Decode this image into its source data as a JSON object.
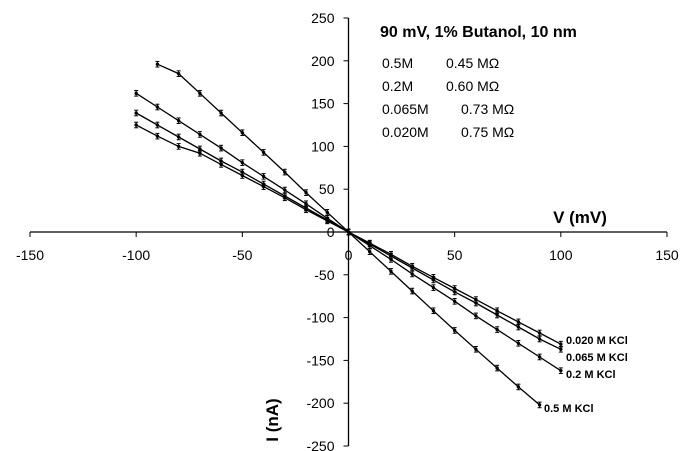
{
  "chart_data": {
    "type": "line",
    "title": "90 mV, 1%  Butanol, 10 nm",
    "xlabel": "V (mV)",
    "ylabel": "I (nA)",
    "xlim": [
      -150,
      150
    ],
    "ylim": [
      -250,
      250
    ],
    "xticks": [
      -150,
      -100,
      -50,
      0,
      50,
      100,
      150
    ],
    "yticks": [
      -250,
      -200,
      -150,
      -100,
      -50,
      0,
      50,
      100,
      150,
      200,
      250
    ],
    "xtick_labels": [
      "-150",
      "-100",
      "-50",
      "0",
      "50",
      "100",
      "150"
    ],
    "ytick_labels": [
      "-250",
      "-200",
      "-150",
      "-100",
      "-50",
      "0",
      "50",
      "100",
      "150",
      "200",
      "250"
    ],
    "legend_lines": [
      {
        "concentration": "0.5M",
        "resistance": "0.45 MΩ"
      },
      {
        "concentration": "0.2M",
        "resistance": "0.60 MΩ"
      },
      {
        "concentration": "0.065M",
        "resistance": "0.73 MΩ"
      },
      {
        "concentration": "0.020M",
        "resistance": "0.75 MΩ"
      }
    ],
    "series": [
      {
        "name": "0.5 M KCl",
        "x": [
          -90,
          -80,
          -70,
          -60,
          -50,
          -40,
          -30,
          -20,
          -10,
          0,
          10,
          20,
          30,
          40,
          50,
          60,
          70,
          80,
          90
        ],
        "y": [
          196,
          185,
          162,
          139,
          116,
          93,
          70,
          46,
          23,
          0,
          -23,
          -46,
          -69,
          -92,
          -115,
          -137,
          -159,
          -181,
          -202
        ]
      },
      {
        "name": "0.2 M KCl",
        "x": [
          -100,
          -90,
          -80,
          -70,
          -60,
          -50,
          -40,
          -30,
          -20,
          -10,
          0,
          10,
          20,
          30,
          40,
          50,
          60,
          70,
          80,
          90,
          100
        ],
        "y": [
          162,
          146,
          130,
          114,
          98,
          81,
          65,
          49,
          33,
          16,
          0,
          -16,
          -32,
          -49,
          -65,
          -81,
          -98,
          -114,
          -130,
          -146,
          -162
        ]
      },
      {
        "name": "0.065 M KCl",
        "x": [
          -100,
          -90,
          -80,
          -70,
          -60,
          -50,
          -40,
          -30,
          -20,
          -10,
          0,
          10,
          20,
          30,
          40,
          50,
          60,
          70,
          80,
          90,
          100
        ],
        "y": [
          139,
          125,
          111,
          97,
          83,
          70,
          56,
          42,
          28,
          14,
          0,
          -14,
          -28,
          -42,
          -56,
          -70,
          -83,
          -97,
          -111,
          -125,
          -137
        ]
      },
      {
        "name": "0.020 M KCl",
        "x": [
          -100,
          -90,
          -80,
          -70,
          -60,
          -50,
          -40,
          -30,
          -20,
          -10,
          0,
          10,
          20,
          30,
          40,
          50,
          60,
          70,
          80,
          90,
          100
        ],
        "y": [
          125,
          112,
          100,
          92,
          79,
          66,
          53,
          40,
          26,
          13,
          0,
          -13,
          -26,
          -40,
          -53,
          -66,
          -79,
          -92,
          -105,
          -118,
          -131
        ]
      }
    ]
  }
}
